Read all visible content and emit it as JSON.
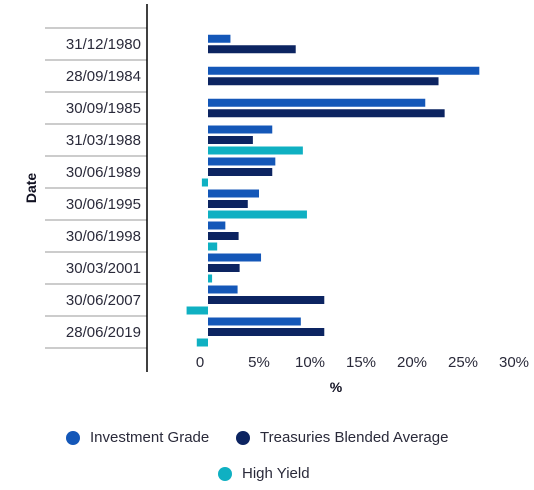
{
  "chart_data": {
    "type": "bar",
    "orientation": "horizontal",
    "title": "",
    "xlabel": "%",
    "ylabel": "Date",
    "xlim": [
      -5,
      30
    ],
    "x_ticks": [
      "0",
      "5%",
      "10%",
      "15%",
      "20%",
      "25%",
      "30%"
    ],
    "x_tick_values": [
      0,
      5,
      10,
      15,
      20,
      25,
      30
    ],
    "grid": false,
    "legend_position": "bottom",
    "categories": [
      "31/12/1980",
      "28/09/1984",
      "30/09/1985",
      "31/03/1988",
      "30/06/1989",
      "30/06/1995",
      "30/06/1998",
      "30/03/2001",
      "30/06/2007",
      "28/06/2019"
    ],
    "series": [
      {
        "name": "Investment Grade",
        "color": "#1457b8",
        "values": [
          2.2,
          26.6,
          21.3,
          6.3,
          6.6,
          5.0,
          1.7,
          5.2,
          2.9,
          9.1
        ]
      },
      {
        "name": "Treasuries Blended Average",
        "color": "#0c2461",
        "values": [
          8.6,
          22.6,
          23.2,
          4.4,
          6.3,
          3.9,
          3.0,
          3.1,
          11.4,
          11.4
        ]
      },
      {
        "name": "High Yield",
        "color": "#0fb0c2",
        "values": [
          null,
          null,
          null,
          9.3,
          -0.6,
          9.7,
          0.9,
          0.4,
          -2.1,
          -1.1
        ]
      }
    ]
  }
}
